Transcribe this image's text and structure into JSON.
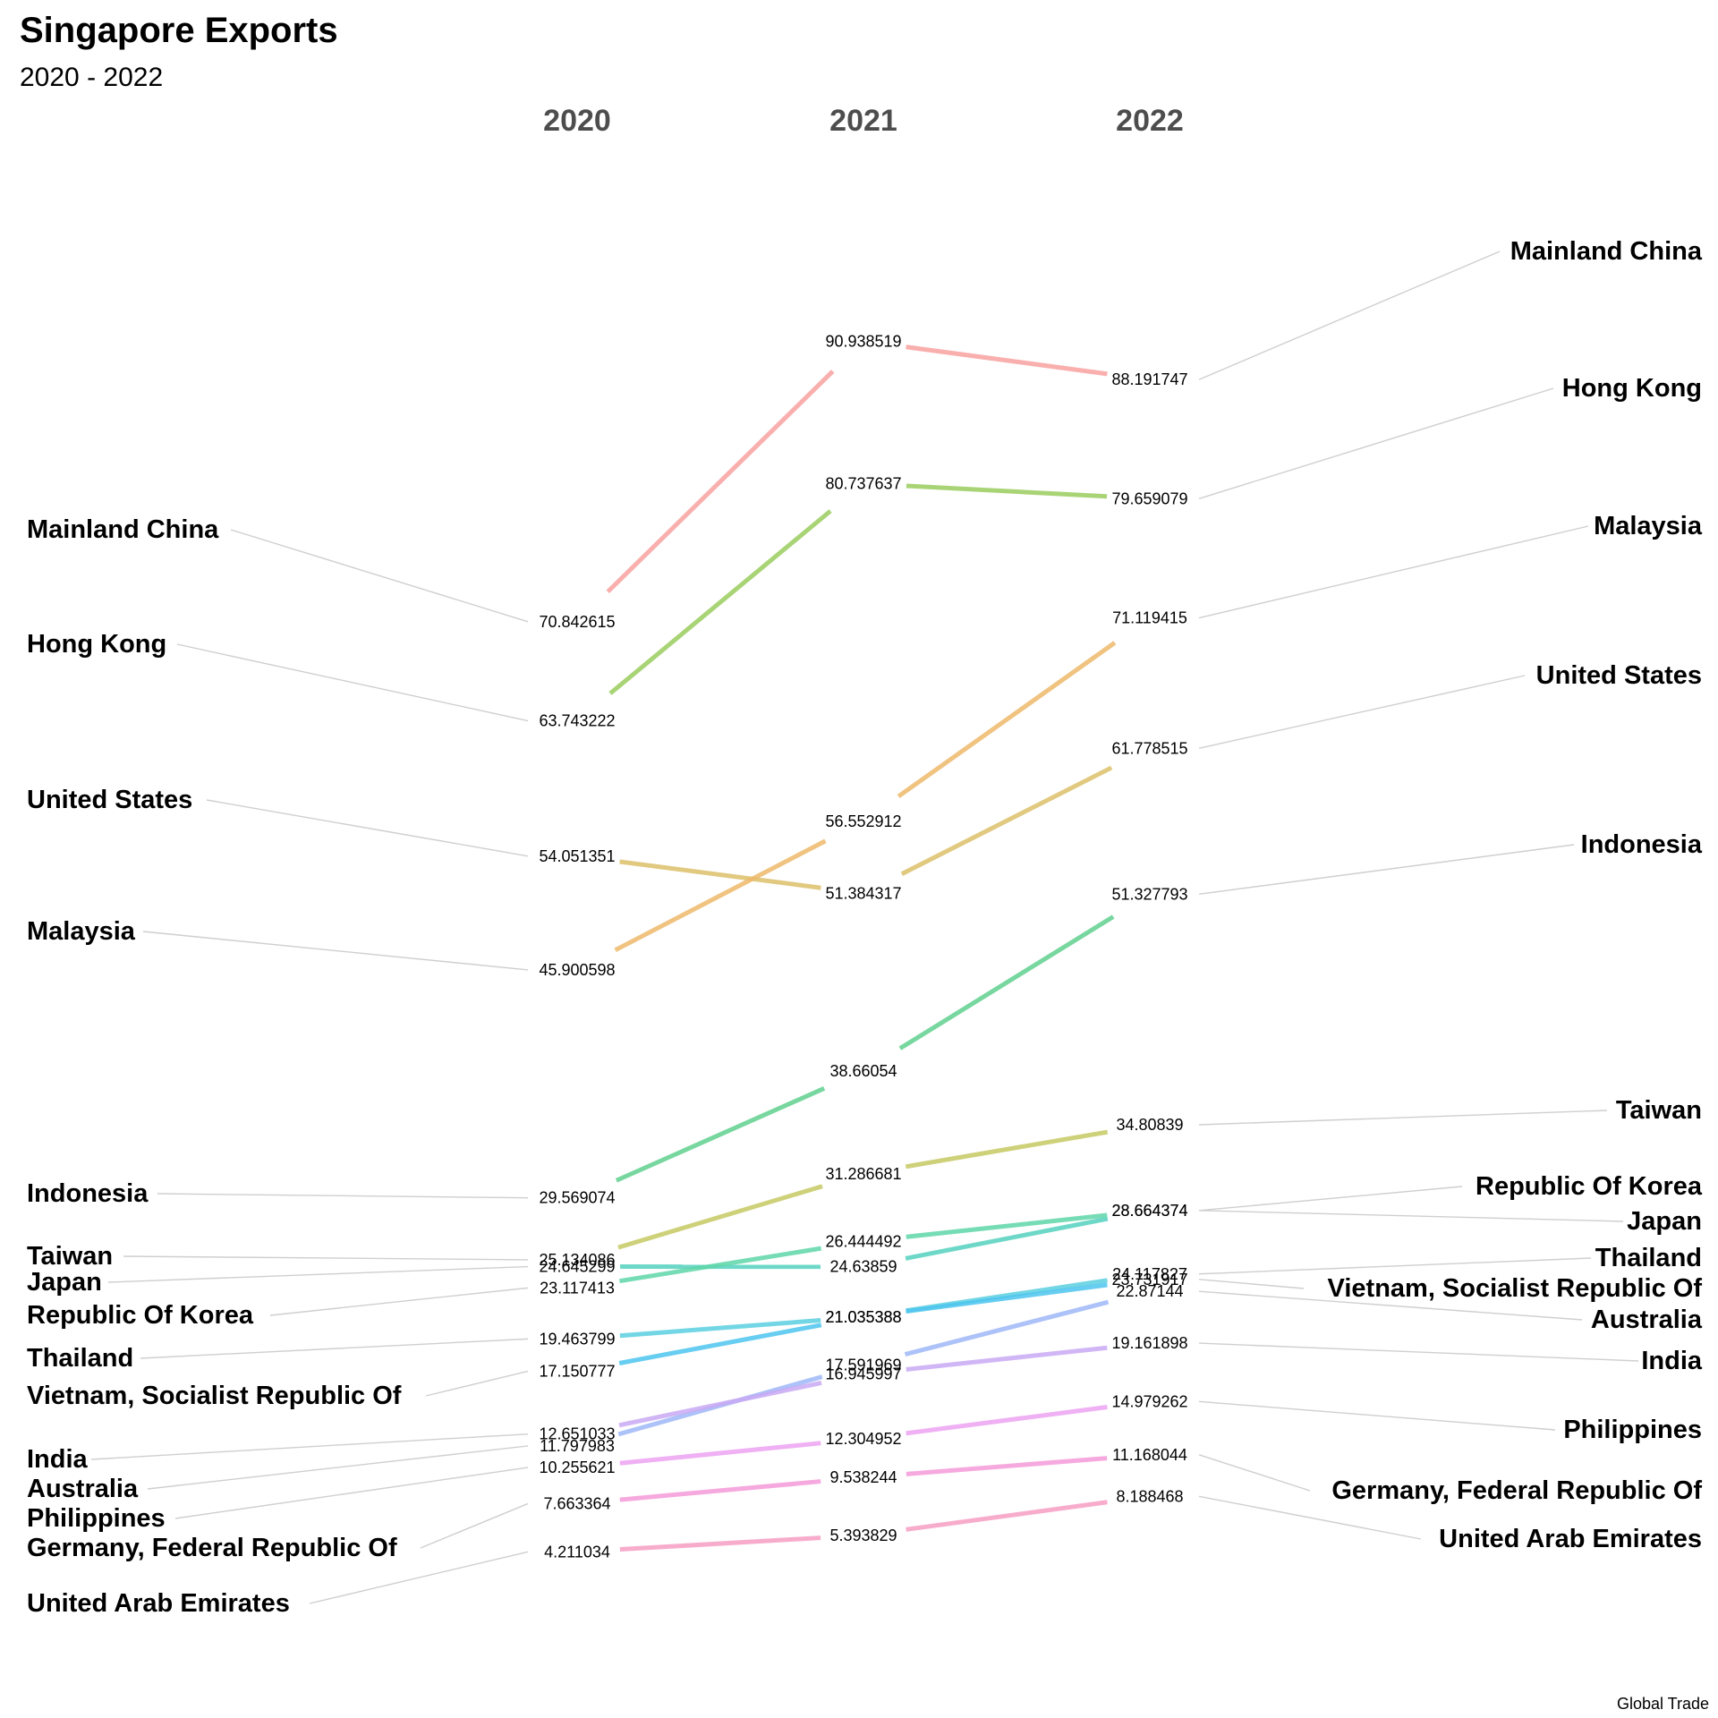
{
  "chart_data": {
    "type": "line",
    "title": "Singapore Exports",
    "subtitle": "2020 - 2022",
    "caption": "Global Trade",
    "x": [
      "2020",
      "2021",
      "2022"
    ],
    "series": [
      {
        "name": "Mainland China",
        "values": [
          70.842615,
          90.938519,
          88.191747
        ],
        "labels": [
          "70.842615",
          "90.938519",
          "88.191747"
        ],
        "color": "#F8A19F"
      },
      {
        "name": "Hong Kong",
        "values": [
          63.743222,
          80.737637,
          79.659079
        ],
        "labels": [
          "63.743222",
          "80.737637",
          "79.659079"
        ],
        "color": "#9ACD5E"
      },
      {
        "name": "United States",
        "values": [
          54.051351,
          51.384317,
          61.778515
        ],
        "labels": [
          "54.051351",
          "51.384317",
          "61.778515"
        ],
        "color": "#DCC06A"
      },
      {
        "name": "Malaysia",
        "values": [
          45.900598,
          56.552912,
          71.119415
        ],
        "labels": [
          "45.900598",
          "56.552912",
          "71.119415"
        ],
        "color": "#EDB86A"
      },
      {
        "name": "Indonesia",
        "values": [
          29.569074,
          38.66054,
          51.327793
        ],
        "labels": [
          "29.569074",
          "38.66054",
          "51.327793"
        ],
        "color": "#5FD08E"
      },
      {
        "name": "Taiwan",
        "values": [
          25.134086,
          31.286681,
          34.80839
        ],
        "labels": [
          "25.134086",
          "31.286681",
          "34.80839"
        ],
        "color": "#C6C962"
      },
      {
        "name": "Japan",
        "values": [
          24.645299,
          24.63859,
          28.664374
        ],
        "labels": [
          "24.645299",
          "24.63859",
          "28.664374"
        ],
        "color": "#55D1BE"
      },
      {
        "name": "Republic Of Korea",
        "values": [
          23.117413,
          26.444492,
          28.664374
        ],
        "labels": [
          "23.117413",
          "26.444492",
          "28.664374"
        ],
        "color": "#5ED6A8"
      },
      {
        "name": "Thailand",
        "values": [
          19.463799,
          21.035388,
          24.117827
        ],
        "labels": [
          "19.463799",
          "21.035388",
          "24.117827"
        ],
        "color": "#5ACFE0"
      },
      {
        "name": "Vietnam, Socialist Republic Of",
        "values": [
          17.150777,
          21.035388,
          23.731917
        ],
        "labels": [
          "17.150777",
          "21.035388",
          "23.731917"
        ],
        "color": "#4CC4EE"
      },
      {
        "name": "Australia",
        "values": [
          11.797983,
          17.591969,
          22.87144
        ],
        "labels": [
          "11.797983",
          "17.591969",
          "22.87144"
        ],
        "color": "#9DB7F7"
      },
      {
        "name": "India",
        "values": [
          12.651033,
          16.945997,
          19.161898
        ],
        "labels": [
          "12.651033",
          "16.945997",
          "19.161898"
        ],
        "color": "#C9A9F4"
      },
      {
        "name": "Philippines",
        "values": [
          10.255621,
          12.304952,
          14.979262
        ],
        "labels": [
          "10.255621",
          "12.304952",
          "14.979262"
        ],
        "color": "#ECA2F2"
      },
      {
        "name": "Germany, Federal Republic Of",
        "values": [
          7.663364,
          9.538244,
          11.168044
        ],
        "labels": [
          "7.663364",
          "9.538244",
          "11.168044"
        ],
        "color": "#F59AD8"
      },
      {
        "name": "United Arab Emirates",
        "values": [
          4.211034,
          5.393829,
          8.188468
        ],
        "labels": [
          "4.211034",
          "5.393829",
          "8.188468"
        ],
        "color": "#F79DC3"
      }
    ],
    "left_label_order": [
      "Mainland China",
      "Hong Kong",
      "United States",
      "Malaysia",
      "Indonesia",
      "Taiwan",
      "Japan",
      "Republic Of Korea",
      "Thailand",
      "Vietnam, Socialist Republic Of",
      "India",
      "Australia",
      "Philippines",
      "Germany, Federal Republic Of",
      "United Arab Emirates"
    ],
    "right_label_order": [
      "Mainland China",
      "Hong Kong",
      "Malaysia",
      "United States",
      "Indonesia",
      "Taiwan",
      "Republic Of Korea",
      "Japan",
      "Thailand",
      "Vietnam, Socialist Republic Of",
      "Australia",
      "India",
      "Philippines",
      "Germany, Federal Republic Of",
      "United Arab Emirates"
    ],
    "ylim": [
      0,
      100
    ],
    "grid": false,
    "legend": "none"
  }
}
